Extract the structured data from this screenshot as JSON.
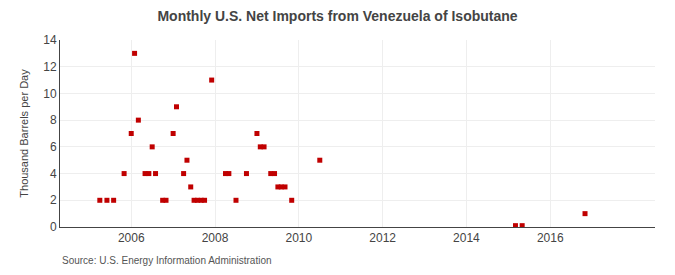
{
  "chart_data": {
    "type": "scatter",
    "title": "Monthly U.S. Net Imports from Venezuela of Isobutane",
    "ylabel": "Thousand Barrels per Day",
    "annotations": [
      "Source: U.S. Energy Information Administration"
    ],
    "x": [
      2005.25,
      2005.42,
      2005.58,
      2005.83,
      2006.0,
      2006.08,
      2006.17,
      2006.33,
      2006.42,
      2006.5,
      2006.58,
      2006.75,
      2006.83,
      2007.0,
      2007.08,
      2007.25,
      2007.33,
      2007.42,
      2007.5,
      2007.58,
      2007.67,
      2007.75,
      2007.92,
      2008.25,
      2008.33,
      2008.5,
      2008.75,
      2009.0,
      2009.08,
      2009.17,
      2009.33,
      2009.42,
      2009.5,
      2009.58,
      2009.67,
      2009.83,
      2010.5,
      2015.17,
      2015.33,
      2016.83
    ],
    "values": [
      2,
      2,
      2,
      4,
      7,
      13,
      8,
      4,
      4,
      6,
      4,
      2,
      2,
      7,
      9,
      4,
      5,
      3,
      2,
      2,
      2,
      2,
      11,
      4,
      4,
      2,
      4,
      7,
      6,
      6,
      4,
      4,
      3,
      3,
      3,
      2,
      5,
      0.1,
      0.1,
      1
    ],
    "color": "#c00000",
    "marker": "square",
    "xlim": [
      2004.3,
      2018.5
    ],
    "xticks": [
      2006,
      2008,
      2010,
      2012,
      2014,
      2016
    ],
    "ylim": [
      0,
      14
    ],
    "yticks": [
      0,
      2,
      4,
      6,
      8,
      10,
      12,
      14
    ],
    "grid": true
  }
}
